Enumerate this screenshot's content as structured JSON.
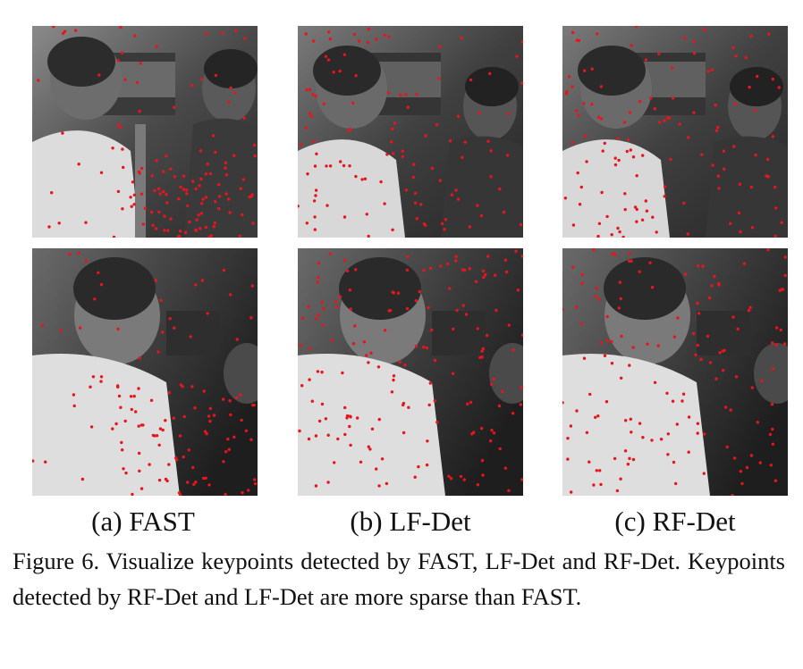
{
  "figure": {
    "sublabels": [
      "(a) FAST",
      "(b) LF-Det",
      "(c) RF-Det"
    ],
    "caption": "Figure 6.  Visualize keypoints detected by FAST, LF-Det and RF-Det.  Keypoints detected by RF-Det and LF-Det are more sparse than FAST."
  },
  "colors": {
    "keypoint": "#e8151c"
  },
  "panels": [
    {
      "method": "FAST",
      "view": 1,
      "keypoints": 130,
      "distribution": "clustered"
    },
    {
      "method": "LF-Det",
      "view": 1,
      "keypoints": 110,
      "distribution": "sparse"
    },
    {
      "method": "RF-Det",
      "view": 1,
      "keypoints": 120,
      "distribution": "sparse"
    },
    {
      "method": "FAST",
      "view": 2,
      "keypoints": 120,
      "distribution": "clustered"
    },
    {
      "method": "LF-Det",
      "view": 2,
      "keypoints": 160,
      "distribution": "sparse"
    },
    {
      "method": "RF-Det",
      "view": 2,
      "keypoints": 140,
      "distribution": "sparse"
    }
  ]
}
